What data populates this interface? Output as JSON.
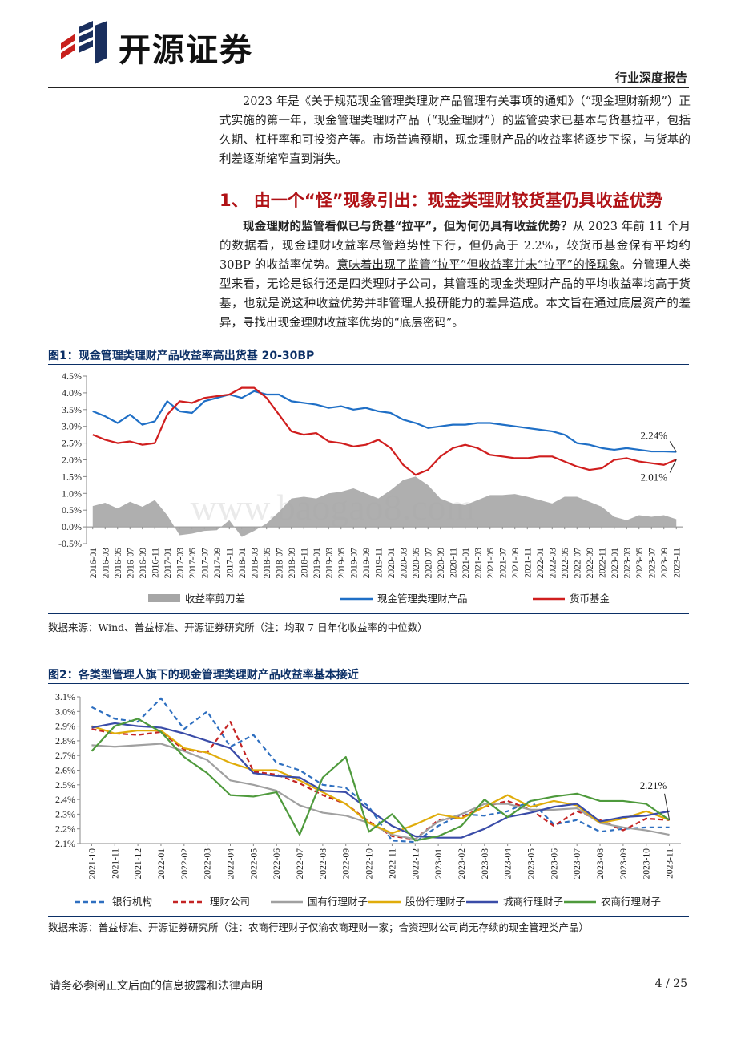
{
  "header": {
    "company": "开源证券",
    "report_type": "行业深度报告"
  },
  "intro": "2023 年是《关于规范现金管理类理财产品管理有关事项的通知》（“现金理财新规”）正式实施的第一年，现金管理类理财产品（“现金理财”）的监管要求已基本与货基拉平，包括久期、杠杆率和可投资产等。市场普遍预期，现金理财产品的收益率将逐步下探，与货基的利差逐渐缩窄直到消失。",
  "section": {
    "title": "1、 由一个“怪”现象引出：现金类理财较货基仍具收益优势",
    "para_bold": "现金理财的监管看似已与货基“拉平”，但为何仍具有收益优势？",
    "para_1": "从 2023 年前 11 个月的数据看，现金理财收益率尽管趋势性下行，但仍高于 2.2%，较货币基金保有平均约 30BP 的收益率优势。",
    "para_underline": "意味着出现了监管“拉平”但收益率并未“拉平”的怪现象",
    "para_2": "。分管理人类型来看，无论是银行还是四类理财子公司，其管理的现金类理财产品的平均收益率均高于货基，也就是说这种收益优势并非管理人投研能力的差异造成。本文旨在通过底层资产的差异，寻找出现金理财收益率优势的“底层密码”。"
  },
  "figure1": {
    "title": "图1：现金管理类理财产品收益率高出货基 20-30BP",
    "source": "数据来源：Wind、普益标准、开源证券研究所（注：均取 7 日年化收益率的中位数）",
    "watermark": "www.baogao8.com"
  },
  "figure2": {
    "title": "图2：各类型管理人旗下的现金管理类理财产品收益率基本接近",
    "source": "数据来源：普益标准、开源证券研究所（注：农商行理财子仅渝农商理财一家；合资理财公司尚无存续的现金管理类产品）"
  },
  "footer": {
    "disclaimer": "请务必参阅正文后面的信息披露和法律声明",
    "page": "4 / 25"
  },
  "chart_data": [
    {
      "type": "line",
      "title": "图1：现金管理类理财产品收益率高出货基 20-30BP",
      "x": [
        "2016-01",
        "2016-03",
        "2016-05",
        "2016-07",
        "2016-09",
        "2016-11",
        "2017-01",
        "2017-03",
        "2017-05",
        "2017-07",
        "2017-09",
        "2017-11",
        "2018-01",
        "2018-03",
        "2018-05",
        "2018-07",
        "2018-09",
        "2018-11",
        "2019-01",
        "2019-03",
        "2019-05",
        "2019-07",
        "2019-09",
        "2019-11",
        "2020-01",
        "2020-03",
        "2020-05",
        "2020-07",
        "2020-09",
        "2020-11",
        "2021-01",
        "2021-03",
        "2021-05",
        "2021-07",
        "2021-09",
        "2021-11",
        "2022-01",
        "2022-03",
        "2022-05",
        "2022-07",
        "2022-09",
        "2022-11",
        "2023-01",
        "2023-03",
        "2023-05",
        "2023-07",
        "2023-09",
        "2023-11"
      ],
      "ylim": [
        -0.5,
        4.5
      ],
      "y_ticks": [
        "-0.5%",
        "0.0%",
        "0.5%",
        "1.0%",
        "1.5%",
        "2.0%",
        "2.5%",
        "3.0%",
        "3.5%",
        "4.0%",
        "4.5%"
      ],
      "series": [
        {
          "name": "收益率剪刀差",
          "kind": "area",
          "color": "#a6a6a6",
          "values": [
            0.62,
            0.72,
            0.55,
            0.75,
            0.6,
            0.8,
            0.35,
            -0.25,
            -0.2,
            -0.12,
            -0.1,
            0.2,
            -0.3,
            -0.12,
            0.1,
            0.45,
            0.85,
            0.9,
            0.85,
            1.0,
            1.05,
            1.15,
            1.0,
            0.85,
            1.1,
            1.4,
            1.5,
            1.25,
            0.85,
            0.7,
            0.65,
            0.8,
            0.95,
            0.95,
            0.98,
            0.9,
            0.8,
            0.7,
            0.9,
            0.9,
            0.75,
            0.6,
            0.3,
            0.2,
            0.35,
            0.3,
            0.35,
            0.23
          ]
        },
        {
          "name": "现金管理类理财产品",
          "kind": "line",
          "color": "#1f6fc6",
          "values": [
            3.45,
            3.3,
            3.1,
            3.35,
            3.05,
            3.15,
            3.75,
            3.45,
            3.4,
            3.75,
            3.85,
            3.95,
            3.85,
            4.05,
            3.95,
            3.95,
            3.75,
            3.7,
            3.65,
            3.55,
            3.6,
            3.5,
            3.55,
            3.45,
            3.4,
            3.2,
            3.1,
            2.95,
            3.0,
            3.05,
            3.05,
            3.1,
            3.1,
            3.05,
            3.0,
            2.95,
            2.9,
            2.85,
            2.75,
            2.5,
            2.45,
            2.35,
            2.3,
            2.35,
            2.3,
            2.25,
            2.25,
            2.24
          ]
        },
        {
          "name": "货币基金",
          "kind": "line",
          "color": "#d01e1e",
          "values": [
            2.75,
            2.6,
            2.5,
            2.55,
            2.45,
            2.5,
            3.35,
            3.75,
            3.7,
            3.85,
            3.9,
            3.95,
            4.15,
            4.15,
            3.85,
            3.35,
            2.85,
            2.75,
            2.8,
            2.55,
            2.5,
            2.4,
            2.45,
            2.6,
            2.35,
            1.85,
            1.55,
            1.7,
            2.1,
            2.35,
            2.45,
            2.35,
            2.15,
            2.1,
            2.05,
            2.05,
            2.1,
            2.1,
            1.95,
            1.8,
            1.7,
            1.75,
            2.0,
            2.05,
            1.95,
            1.9,
            1.85,
            2.01
          ]
        }
      ],
      "annotations": [
        "2.24%",
        "2.01%"
      ],
      "legend": "bottom"
    },
    {
      "type": "line",
      "title": "图2：各类型管理人旗下的现金管理类理财产品收益率基本接近",
      "x": [
        "2021-10",
        "2021-11",
        "2021-12",
        "2022-01",
        "2022-02",
        "2022-03",
        "2022-04",
        "2022-05",
        "2022-06",
        "2022-07",
        "2022-08",
        "2022-09",
        "2022-10",
        "2022-11",
        "2022-12",
        "2023-01",
        "2023-02",
        "2023-03",
        "2023-04",
        "2023-05",
        "2023-06",
        "2023-07",
        "2023-08",
        "2023-09",
        "2023-10",
        "2023-11"
      ],
      "ylim": [
        2.1,
        3.1
      ],
      "y_ticks": [
        "2.1%",
        "2.2%",
        "2.3%",
        "2.4%",
        "2.5%",
        "2.6%",
        "2.7%",
        "2.8%",
        "2.9%",
        "3.0%",
        "3.1%"
      ],
      "series": [
        {
          "name": "银行机构",
          "color": "#2e6fc0",
          "dash": "dashed",
          "values": [
            3.03,
            2.95,
            2.93,
            3.09,
            2.88,
            3.0,
            2.76,
            2.84,
            2.65,
            2.6,
            2.5,
            2.48,
            2.35,
            2.12,
            2.11,
            2.22,
            2.3,
            2.29,
            2.32,
            2.39,
            2.23,
            2.26,
            2.18,
            2.2,
            2.21,
            2.21
          ]
        },
        {
          "name": "理财公司",
          "color": "#c42424",
          "dash": "dashed",
          "values": [
            2.88,
            2.85,
            2.84,
            2.86,
            2.74,
            2.72,
            2.93,
            2.59,
            2.57,
            2.51,
            2.43,
            2.37,
            2.25,
            2.15,
            2.13,
            2.26,
            2.28,
            2.35,
            2.39,
            2.33,
            2.22,
            2.32,
            2.26,
            2.19,
            2.27,
            2.26
          ]
        },
        {
          "name": "国有行理财子",
          "color": "#a0a0a0",
          "dash": "solid",
          "values": [
            2.77,
            2.76,
            2.77,
            2.78,
            2.73,
            2.67,
            2.53,
            2.5,
            2.46,
            2.36,
            2.31,
            2.29,
            2.24,
            2.16,
            2.13,
            2.25,
            2.3,
            2.37,
            2.37,
            2.33,
            2.33,
            2.34,
            2.24,
            2.21,
            2.19,
            2.16
          ]
        },
        {
          "name": "股份行理财子",
          "color": "#e0ac0a",
          "dash": "solid",
          "values": [
            2.9,
            2.85,
            2.87,
            2.87,
            2.75,
            2.72,
            2.65,
            2.6,
            2.6,
            2.53,
            2.45,
            2.37,
            2.24,
            2.17,
            2.23,
            2.3,
            2.27,
            2.35,
            2.43,
            2.35,
            2.39,
            2.36,
            2.24,
            2.27,
            2.32,
            2.26
          ]
        },
        {
          "name": "城商行理财子",
          "color": "#3a4ca8",
          "dash": "solid",
          "values": [
            2.89,
            2.92,
            2.9,
            2.89,
            2.85,
            2.8,
            2.75,
            2.58,
            2.56,
            2.55,
            2.46,
            2.45,
            2.33,
            2.22,
            2.15,
            2.14,
            2.14,
            2.2,
            2.28,
            2.31,
            2.35,
            2.37,
            2.25,
            2.28,
            2.29,
            2.32
          ]
        },
        {
          "name": "农商行理财子",
          "color": "#4e9a3c",
          "dash": "solid",
          "values": [
            2.73,
            2.9,
            2.95,
            2.86,
            2.69,
            2.58,
            2.43,
            2.42,
            2.45,
            2.16,
            2.55,
            2.69,
            2.18,
            2.3,
            2.12,
            2.15,
            2.22,
            2.4,
            2.28,
            2.39,
            2.42,
            2.44,
            2.39,
            2.39,
            2.37,
            2.26
          ]
        }
      ],
      "annotations": [
        "2.21%"
      ],
      "legend": "bottom"
    }
  ]
}
